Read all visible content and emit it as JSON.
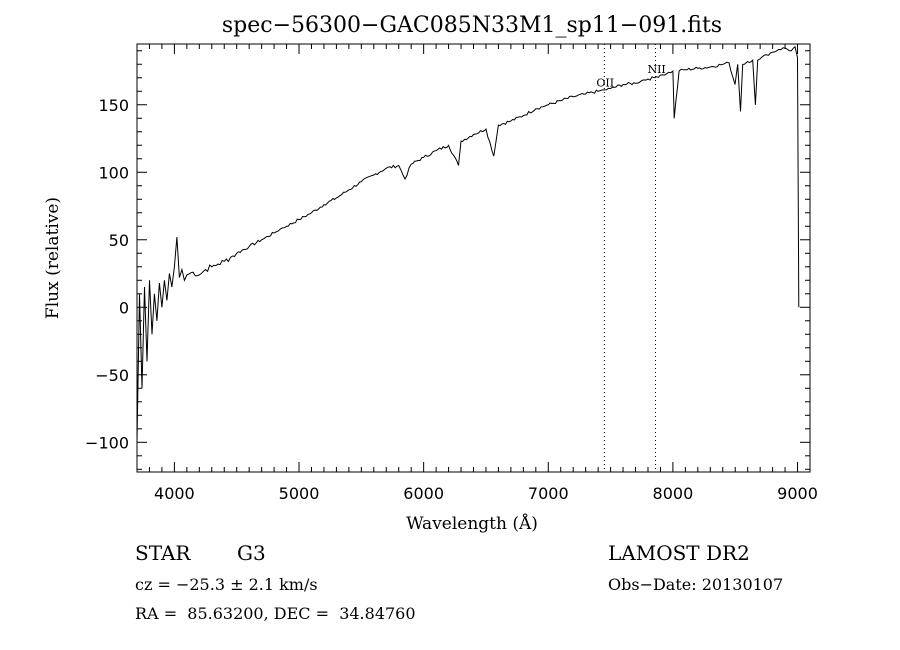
{
  "chart_data": {
    "type": "line",
    "title": "spec−56300−GAC085N33M1_sp11−091.fits",
    "xlabel": "Wavelength (Å)",
    "ylabel": "Flux (relative)",
    "xlim": [
      3700,
      9100
    ],
    "ylim": [
      -122,
      195
    ],
    "x_ticks": [
      4000,
      5000,
      6000,
      7000,
      8000,
      9000
    ],
    "x_tick_labels": [
      "4000",
      "5000",
      "6000",
      "7000",
      "8000",
      "9000"
    ],
    "y_ticks": [
      -100,
      -50,
      0,
      50,
      100,
      150
    ],
    "y_tick_labels": [
      "−100",
      "−50",
      "0",
      "50",
      "100",
      "150"
    ],
    "grid": false,
    "series": [
      {
        "x": [
          3700,
          3720,
          3740,
          3760,
          3780,
          3800,
          3820,
          3840,
          3860,
          3880,
          3900,
          3920,
          3940,
          3960,
          3980,
          4000,
          4020,
          4040,
          4060,
          4080,
          4100,
          4150,
          4200,
          4250,
          4300,
          4350,
          4400,
          4450,
          4500,
          4600,
          4700,
          4800,
          4850,
          4900,
          5000,
          5100,
          5200,
          5300,
          5400,
          5500,
          5600,
          5700,
          5800,
          5850,
          5900,
          6000,
          6100,
          6200,
          6280,
          6300,
          6400,
          6500,
          6563,
          6600,
          6700,
          6800,
          6900,
          7000,
          7100,
          7200,
          7300,
          7400,
          7450,
          7500,
          7600,
          7700,
          7750,
          7800,
          7850,
          7900,
          7950,
          8000,
          8010,
          8050,
          8100,
          8200,
          8300,
          8400,
          8450,
          8498,
          8520,
          8542,
          8560,
          8600,
          8640,
          8662,
          8680,
          8700,
          8750,
          8800,
          8850,
          8900,
          8950,
          8980,
          9000,
          9010
        ],
        "y": [
          -100,
          10,
          -60,
          15,
          -40,
          20,
          -20,
          10,
          -10,
          18,
          0,
          20,
          5,
          25,
          15,
          30,
          52,
          22,
          28,
          20,
          24,
          26,
          24,
          28,
          30,
          32,
          34,
          37,
          40,
          45,
          50,
          55,
          58,
          60,
          65,
          70,
          76,
          81,
          87,
          93,
          98,
          103,
          105,
          95,
          106,
          111,
          116,
          120,
          105,
          123,
          128,
          132,
          112,
          135,
          138,
          142,
          147,
          150,
          153,
          156,
          158,
          160,
          161,
          162,
          165,
          166,
          168,
          169,
          170,
          172,
          173,
          175,
          140,
          175,
          176,
          177,
          178,
          180,
          181,
          165,
          180,
          145,
          180,
          182,
          183,
          150,
          183,
          184,
          187,
          189,
          191,
          192,
          190,
          193,
          185,
          0
        ]
      }
    ],
    "annotations": [
      {
        "text": "OII",
        "x": 7450,
        "y": 162
      },
      {
        "text": "NII",
        "x": 7860,
        "y": 172
      }
    ],
    "reference_lines_x": [
      7450,
      7860
    ]
  },
  "info": {
    "object_class": "STAR",
    "subclass": "G3",
    "survey": "LAMOST DR2",
    "redshift_line": "cz = −25.3 ± 2.1 km/s",
    "obs_date_line": "Obs−Date: 20130107",
    "coords_line": "RA =  85.63200, DEC =  34.84760"
  }
}
